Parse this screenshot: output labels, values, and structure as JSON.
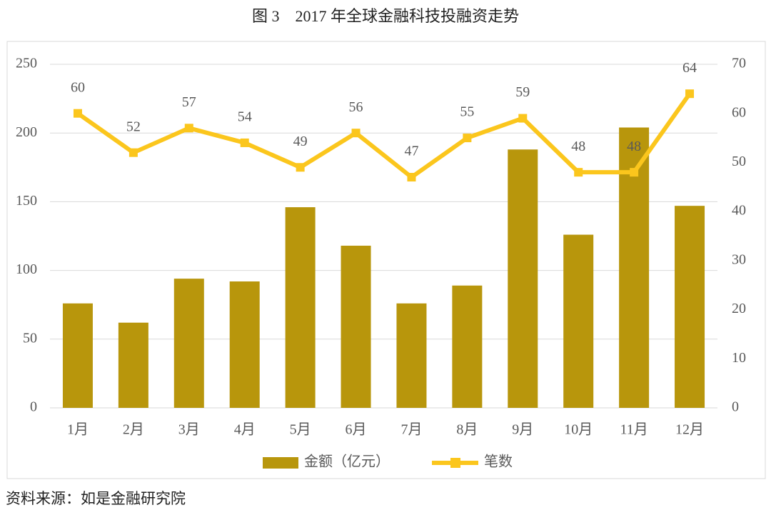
{
  "chart_data": {
    "type": "combo",
    "title": "图 3　2017 年全球金融科技投融资走势",
    "categories": [
      "1月",
      "2月",
      "3月",
      "4月",
      "5月",
      "6月",
      "7月",
      "8月",
      "9月",
      "10月",
      "11月",
      "12月"
    ],
    "series": [
      {
        "name": "金额（亿元）",
        "type": "bar",
        "color": "#b8960c",
        "values": [
          76,
          62,
          94,
          92,
          146,
          118,
          76,
          89,
          188,
          126,
          204,
          147
        ]
      },
      {
        "name": "笔数",
        "type": "line",
        "axis": "y2",
        "color": "#fbc61d",
        "values": [
          60,
          52,
          57,
          54,
          49,
          56,
          47,
          55,
          59,
          48,
          48,
          64
        ]
      }
    ],
    "ylim": [
      0,
      250
    ],
    "yticks": [
      0,
      50,
      100,
      150,
      200,
      250
    ],
    "y2lim": [
      0,
      70
    ],
    "y2ticks": [
      0,
      10,
      20,
      30,
      40,
      50,
      60,
      70
    ],
    "grid": true,
    "source": "资料来源：如是金融研究院"
  }
}
